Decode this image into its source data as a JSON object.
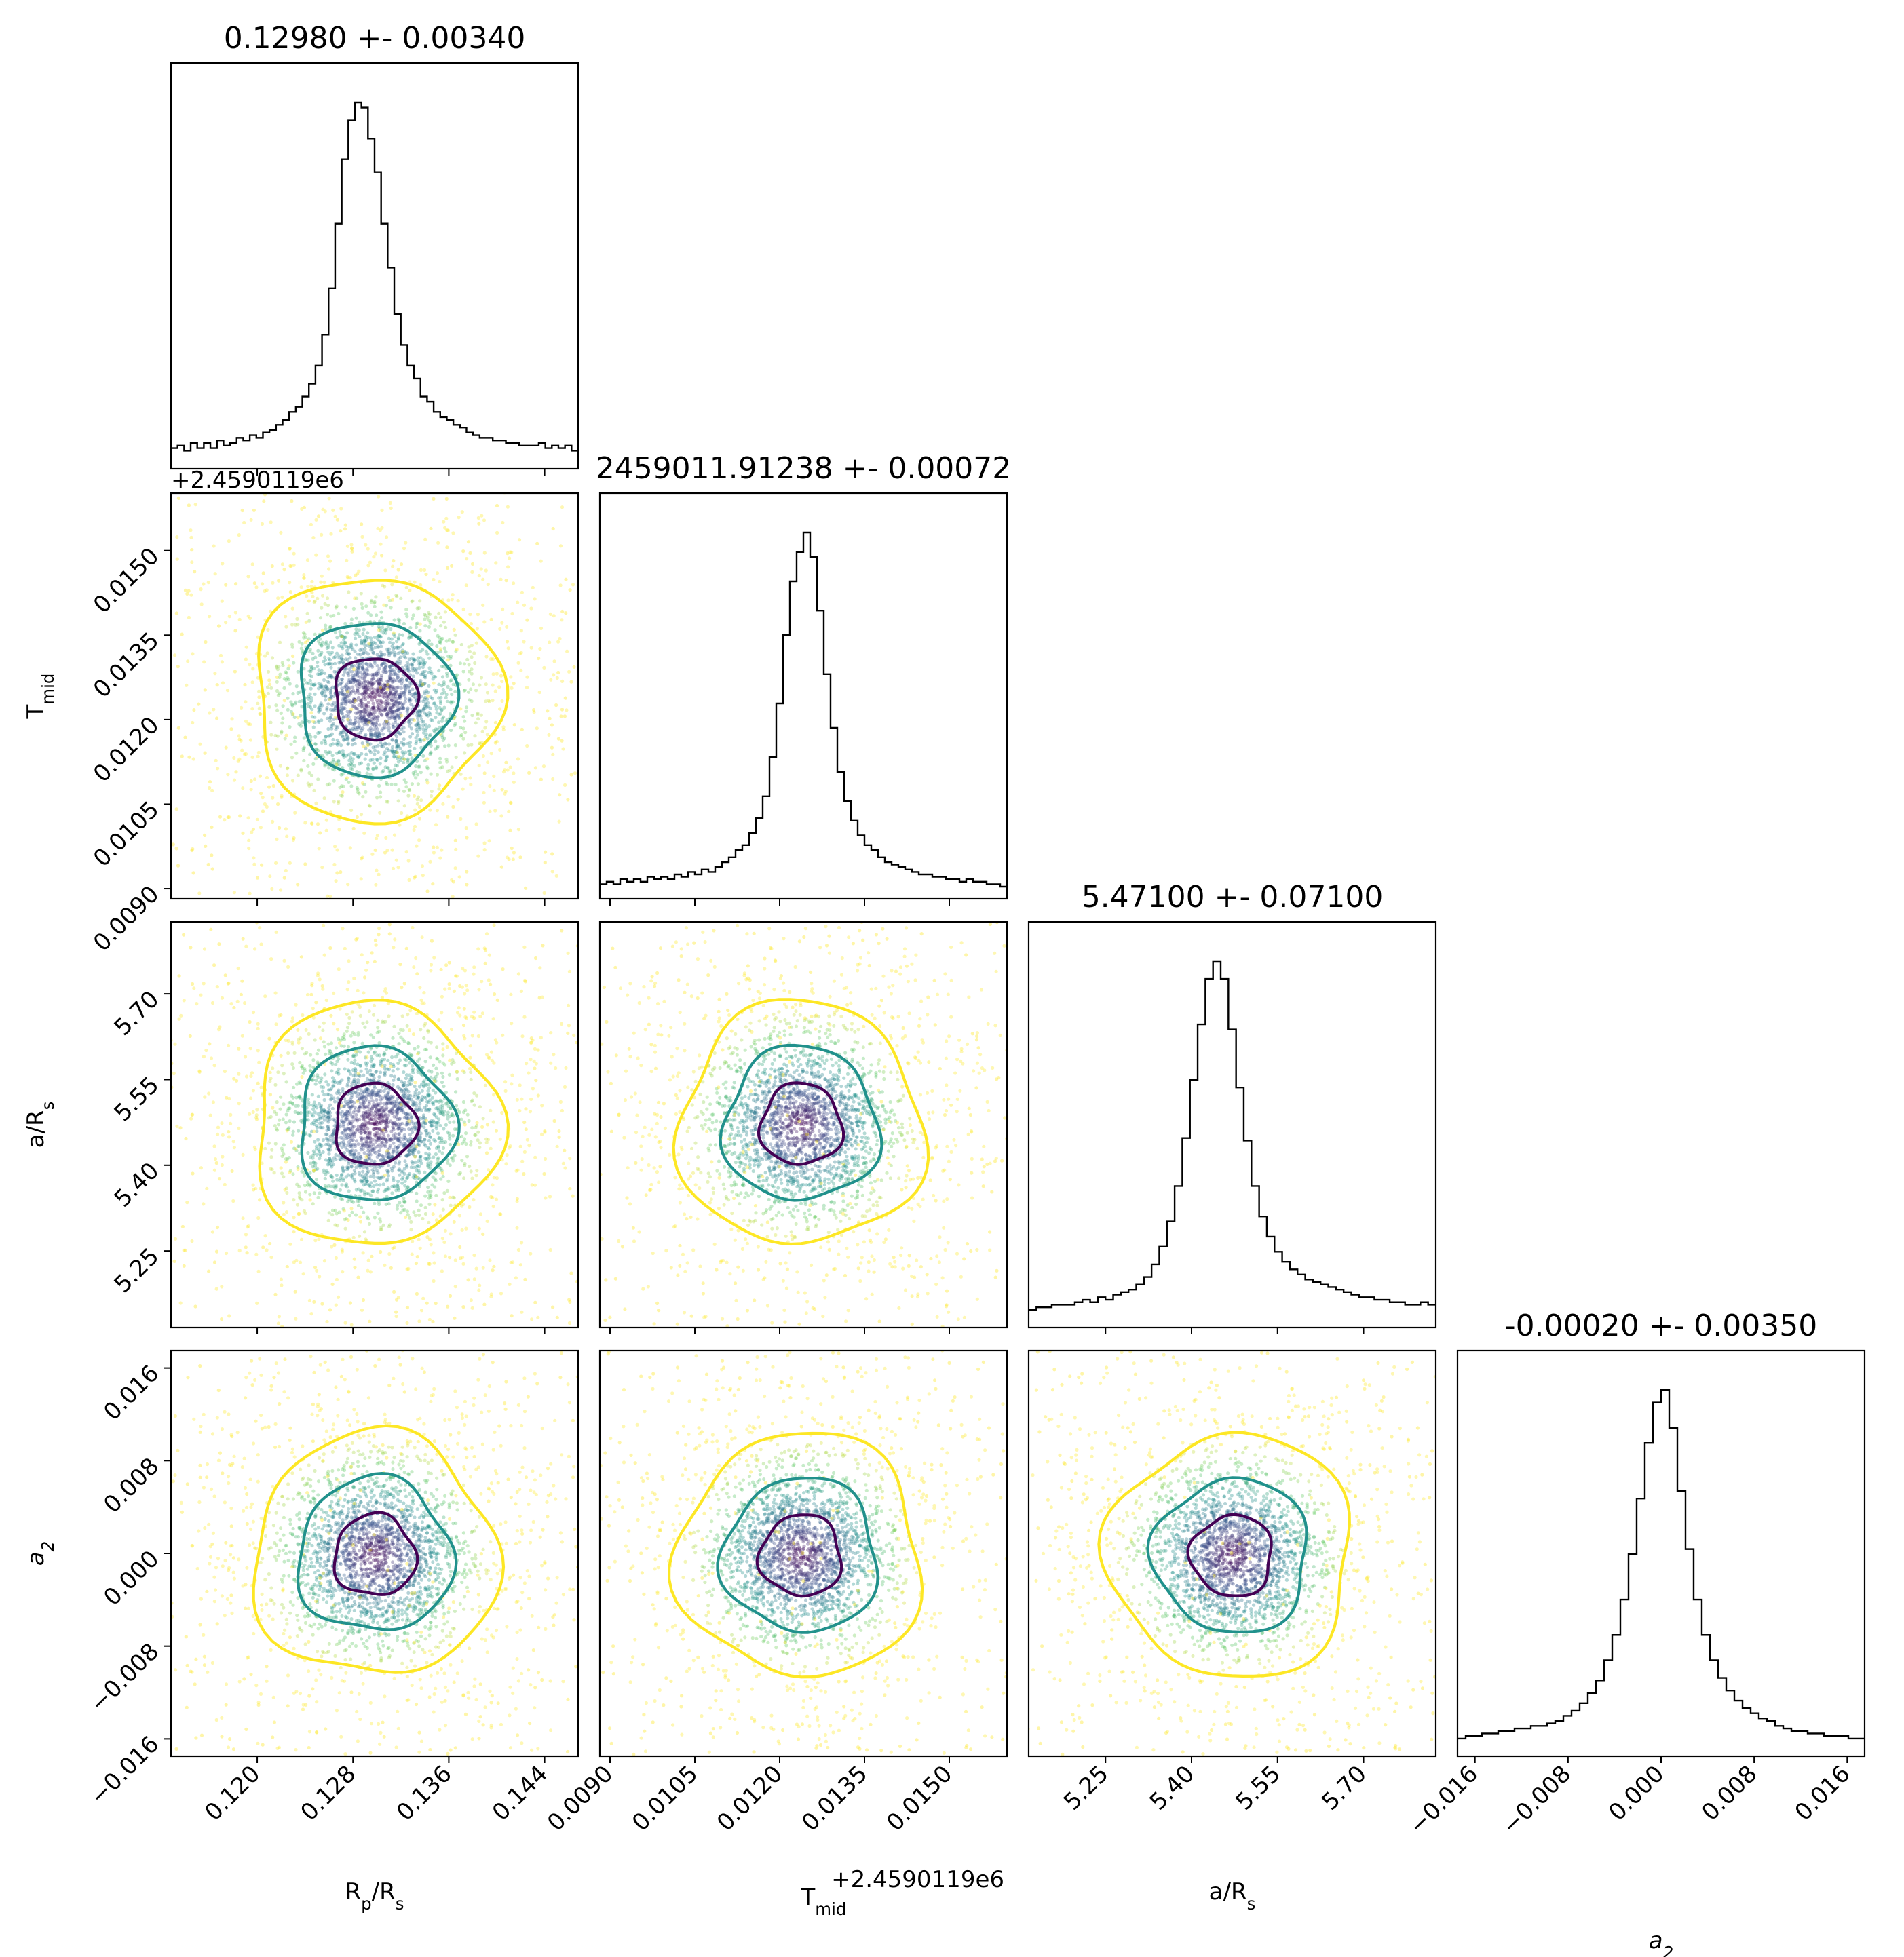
{
  "figure": {
    "type": "corner-plot",
    "parameters": [
      "R_p/R_s",
      "T_mid",
      "a/R_s",
      "a_2"
    ]
  },
  "titles": [
    "0.12980 +- 0.00340",
    "2459011.91238 +- 0.00072",
    "5.47100 +- 0.07100",
    "-0.00020 +- 0.00350"
  ],
  "offset_texts": {
    "tmid_y": "+2.4590119e6",
    "tmid_x": "+2.4590119e6"
  },
  "axis_labels": {
    "x": [
      {
        "base": "R",
        "sub": "p",
        "tail": "/R",
        "sub2": "s"
      },
      {
        "base": "T",
        "sub": "mid",
        "tail": "",
        "sub2": ""
      },
      {
        "base": "a/R",
        "sub": "s",
        "tail": "",
        "sub2": ""
      },
      {
        "base": "a",
        "sub": "2",
        "tail": "",
        "sub2": "",
        "italic": true
      }
    ],
    "y": [
      null,
      {
        "base": "T",
        "sub": "mid",
        "tail": "",
        "sub2": ""
      },
      {
        "base": "a/R",
        "sub": "s",
        "tail": "",
        "sub2": ""
      },
      {
        "base": "a",
        "sub": "2",
        "tail": "",
        "sub2": "",
        "italic": true
      }
    ]
  },
  "ticks": {
    "p0": {
      "labels": [
        "0.120",
        "0.128",
        "0.136",
        "0.144"
      ],
      "values": [
        0.12,
        0.128,
        0.136,
        0.144
      ]
    },
    "p1": {
      "labels": [
        "0.0090",
        "0.0105",
        "0.0120",
        "0.0135",
        "0.0150"
      ],
      "values": [
        0.009,
        0.0105,
        0.012,
        0.0135,
        0.015
      ]
    },
    "p2": {
      "labels": [
        "5.25",
        "5.40",
        "5.55",
        "5.70"
      ],
      "values": [
        5.25,
        5.4,
        5.55,
        5.7
      ]
    },
    "p3": {
      "labels": [
        "−0.016",
        "−0.008",
        "0.000",
        "0.008",
        "0.016"
      ],
      "values": [
        -0.016,
        -0.008,
        0.0,
        0.008,
        0.016
      ]
    }
  },
  "chart_data": {
    "type": "scatter",
    "layout": "corner",
    "ranges": [
      [
        0.1128,
        0.1468
      ],
      [
        0.00882,
        0.01602
      ],
      [
        5.116,
        5.826
      ],
      [
        -0.0175,
        0.0175
      ]
    ],
    "medians": [
      0.1298,
      0.01238,
      5.471,
      -0.0002
    ],
    "sigmas": [
      0.0034,
      0.00072,
      0.071,
      0.0035
    ],
    "contour_colors": [
      "#440154",
      "#21918c",
      "#fde725"
    ],
    "point_colormap": "viridis",
    "histograms": [
      {
        "param": "R_p/R_s",
        "counts": [
          8,
          9,
          7,
          10,
          8,
          10,
          8,
          11,
          9,
          10,
          12,
          11,
          13,
          12,
          14,
          15,
          17,
          19,
          22,
          24,
          28,
          33,
          40,
          52,
          70,
          95,
          120,
          135,
          142,
          140,
          128,
          115,
          95,
          78,
          60,
          48,
          40,
          35,
          28,
          26,
          22,
          20,
          19,
          17,
          16,
          14,
          13,
          12,
          12,
          11,
          11,
          10,
          10,
          9,
          9,
          9,
          10,
          8,
          9,
          8,
          9,
          7
        ]
      },
      {
        "param": "T_mid",
        "counts": [
          6,
          7,
          6,
          8,
          7,
          8,
          7,
          9,
          8,
          9,
          8,
          10,
          9,
          11,
          10,
          12,
          11,
          13,
          15,
          17,
          20,
          22,
          27,
          33,
          42,
          58,
          80,
          108,
          130,
          142,
          150,
          140,
          118,
          92,
          70,
          52,
          40,
          32,
          26,
          22,
          20,
          17,
          15,
          14,
          13,
          12,
          11,
          10,
          10,
          9,
          9,
          8,
          8,
          7,
          8,
          7,
          7,
          6,
          6,
          5
        ]
      },
      {
        "param": "a/R_s",
        "counts": [
          7,
          8,
          8,
          9,
          9,
          9,
          10,
          11,
          10,
          12,
          11,
          13,
          14,
          15,
          17,
          20,
          25,
          32,
          42,
          56,
          75,
          98,
          120,
          138,
          145,
          138,
          118,
          95,
          74,
          56,
          44,
          36,
          30,
          26,
          23,
          21,
          19,
          18,
          17,
          16,
          15,
          14,
          13,
          12,
          12,
          11,
          11,
          10,
          10,
          9,
          9,
          10,
          9
        ]
      },
      {
        "param": "a_2",
        "counts": [
          7,
          8,
          8,
          9,
          9,
          10,
          10,
          11,
          11,
          12,
          12,
          13,
          14,
          16,
          18,
          21,
          25,
          30,
          38,
          48,
          62,
          80,
          102,
          124,
          140,
          145,
          130,
          105,
          82,
          62,
          48,
          38,
          31,
          26,
          22,
          19,
          17,
          15,
          14,
          12,
          11,
          10,
          10,
          9,
          9,
          8,
          8,
          8,
          7,
          7
        ]
      }
    ]
  }
}
